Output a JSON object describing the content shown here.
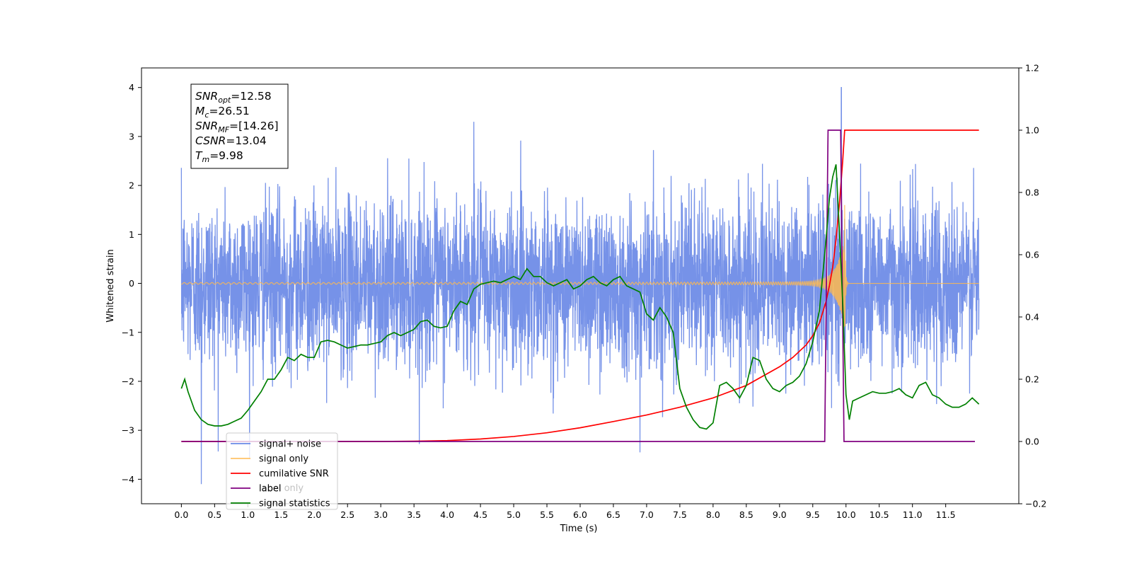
{
  "chart_data": {
    "type": "line",
    "xlabel": "Time (s)",
    "ylabel_left": "Whitened strain",
    "ylabel_right": "",
    "xlim": [
      -0.6,
      12.6
    ],
    "ylim_left": [
      -4.5,
      4.4
    ],
    "ylim_right": [
      -0.2,
      1.2
    ],
    "x_ticks": [
      "0.0",
      "0.5",
      "1.0",
      "1.5",
      "2.0",
      "2.5",
      "3.0",
      "3.5",
      "4.0",
      "4.5",
      "5.0",
      "5.5",
      "6.0",
      "6.5",
      "7.0",
      "7.5",
      "8.0",
      "8.5",
      "9.0",
      "9.5",
      "10.0",
      "10.5",
      "11.0",
      "11.5"
    ],
    "y_ticks_left": [
      "4",
      "3",
      "2",
      "1",
      "0",
      "−1",
      "−2",
      "−3",
      "−4"
    ],
    "y_ticks_right": [
      "1.2",
      "1.0",
      "0.8",
      "0.6",
      "0.4",
      "0.2",
      "0.0",
      "−0.2"
    ],
    "grid": false,
    "legend_position": "lower-left",
    "annotation": [
      {
        "main": "SNR",
        "sub": "opt",
        "value": "=12.58"
      },
      {
        "main": "M",
        "sub": "c",
        "value": "=26.51"
      },
      {
        "main": "SNR",
        "sub": "MF",
        "value": "=[14.26]"
      },
      {
        "main": "CSNR",
        "sub": "",
        "value": "=13.04"
      },
      {
        "main": "T",
        "sub": "m",
        "value": "=9.98"
      }
    ],
    "series": [
      {
        "name": "signal+ noise",
        "axis": "left",
        "color": "#6a89e6",
        "style": "noise",
        "x_range": [
          0.0,
          12.0
        ],
        "std": 1.0,
        "min": -4.1,
        "max": 4.0,
        "notable_peaks": [
          [
            0.3,
            -4.1
          ],
          [
            4.4,
            3.3
          ],
          [
            9.93,
            4.0
          ],
          [
            6.9,
            -3.45
          ]
        ]
      },
      {
        "name": "signal only",
        "axis": "left",
        "color": "#ffb84d",
        "style": "chirp",
        "x_range": [
          0.0,
          12.0
        ],
        "merger_time": 9.98,
        "peak_amplitude": 1.6
      },
      {
        "name": "cumilative SNR",
        "axis": "right",
        "color": "#ff0000",
        "x": [
          0.0,
          3.0,
          3.5,
          4.0,
          4.5,
          5.0,
          5.5,
          6.0,
          6.5,
          7.0,
          7.5,
          8.0,
          8.5,
          9.0,
          9.2,
          9.4,
          9.5,
          9.6,
          9.7,
          9.75,
          9.8,
          9.85,
          9.9,
          9.95,
          9.98,
          12.0
        ],
        "y": [
          0.0,
          0.0,
          0.001,
          0.003,
          0.008,
          0.016,
          0.028,
          0.044,
          0.064,
          0.085,
          0.11,
          0.14,
          0.18,
          0.24,
          0.27,
          0.31,
          0.34,
          0.38,
          0.45,
          0.5,
          0.56,
          0.65,
          0.76,
          0.9,
          1.0,
          1.0
        ]
      },
      {
        "name": "label",
        "axis": "right",
        "color": "#800080",
        "x": [
          0.0,
          9.68,
          9.73,
          9.92,
          9.97,
          11.94
        ],
        "y": [
          0.0,
          0.0,
          1.0,
          1.0,
          0.0,
          0.0
        ]
      },
      {
        "name": "label only",
        "axis": "right",
        "color": "#800080",
        "hidden": true
      },
      {
        "name": "signal statistics",
        "axis": "right",
        "color": "#008000",
        "x": [
          0.0,
          0.05,
          0.1,
          0.2,
          0.3,
          0.4,
          0.5,
          0.6,
          0.7,
          0.8,
          0.9,
          1.0,
          1.1,
          1.2,
          1.3,
          1.4,
          1.5,
          1.6,
          1.7,
          1.8,
          1.9,
          2.0,
          2.1,
          2.2,
          2.3,
          2.4,
          2.5,
          2.6,
          2.7,
          2.8,
          2.9,
          3.0,
          3.1,
          3.2,
          3.3,
          3.4,
          3.5,
          3.6,
          3.7,
          3.8,
          3.9,
          4.0,
          4.1,
          4.2,
          4.3,
          4.4,
          4.5,
          4.6,
          4.7,
          4.8,
          4.9,
          5.0,
          5.1,
          5.2,
          5.3,
          5.4,
          5.5,
          5.6,
          5.7,
          5.8,
          5.9,
          6.0,
          6.1,
          6.2,
          6.3,
          6.4,
          6.5,
          6.6,
          6.7,
          6.8,
          6.9,
          7.0,
          7.1,
          7.2,
          7.3,
          7.4,
          7.5,
          7.6,
          7.7,
          7.8,
          7.9,
          8.0,
          8.1,
          8.2,
          8.3,
          8.4,
          8.5,
          8.6,
          8.7,
          8.8,
          8.9,
          9.0,
          9.1,
          9.2,
          9.3,
          9.4,
          9.5,
          9.6,
          9.7,
          9.75,
          9.8,
          9.85,
          9.9,
          9.95,
          10.0,
          10.05,
          10.1,
          10.2,
          10.3,
          10.4,
          10.5,
          10.6,
          10.7,
          10.8,
          10.9,
          11.0,
          11.1,
          11.2,
          11.3,
          11.4,
          11.5,
          11.6,
          11.7,
          11.8,
          11.9,
          12.0
        ],
        "y": [
          0.17,
          0.2,
          0.16,
          0.1,
          0.07,
          0.055,
          0.05,
          0.05,
          0.055,
          0.065,
          0.075,
          0.1,
          0.13,
          0.16,
          0.2,
          0.2,
          0.23,
          0.27,
          0.26,
          0.28,
          0.27,
          0.27,
          0.32,
          0.325,
          0.32,
          0.31,
          0.3,
          0.305,
          0.31,
          0.31,
          0.315,
          0.32,
          0.34,
          0.35,
          0.34,
          0.35,
          0.36,
          0.385,
          0.39,
          0.37,
          0.365,
          0.37,
          0.42,
          0.45,
          0.44,
          0.49,
          0.505,
          0.51,
          0.515,
          0.51,
          0.52,
          0.53,
          0.52,
          0.555,
          0.53,
          0.53,
          0.51,
          0.5,
          0.51,
          0.52,
          0.49,
          0.5,
          0.52,
          0.53,
          0.51,
          0.5,
          0.52,
          0.53,
          0.5,
          0.49,
          0.48,
          0.41,
          0.39,
          0.43,
          0.4,
          0.35,
          0.17,
          0.11,
          0.07,
          0.045,
          0.04,
          0.06,
          0.18,
          0.19,
          0.17,
          0.14,
          0.18,
          0.27,
          0.26,
          0.2,
          0.17,
          0.16,
          0.18,
          0.19,
          0.21,
          0.25,
          0.32,
          0.42,
          0.65,
          0.78,
          0.85,
          0.89,
          0.68,
          0.45,
          0.15,
          0.07,
          0.13,
          0.14,
          0.15,
          0.16,
          0.155,
          0.155,
          0.16,
          0.17,
          0.15,
          0.14,
          0.18,
          0.19,
          0.15,
          0.14,
          0.12,
          0.11,
          0.11,
          0.12,
          0.14,
          0.12
        ]
      }
    ]
  }
}
